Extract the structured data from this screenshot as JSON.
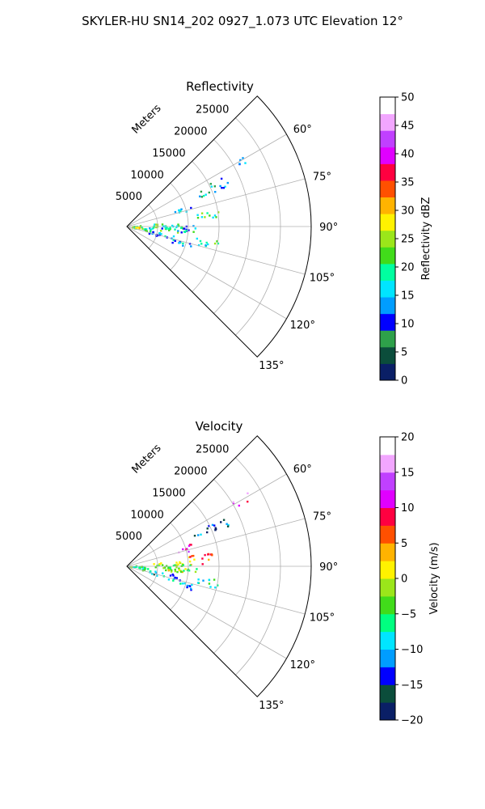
{
  "figure": {
    "title": "SKYLER-HU  SN14_202  0927_1.073 UTC Elevation 12°"
  },
  "chart_data": [
    {
      "type": "heatmap",
      "subtype": "polar-sector (radar PPI)",
      "title": "Reflectivity",
      "radial_axis_label": "Meters",
      "radial_ticks": [
        5000,
        10000,
        15000,
        20000,
        25000
      ],
      "radial_tick_labels": [
        "5000",
        "10000",
        "15000",
        "20000",
        "25000"
      ],
      "radial_range": [
        0,
        30000
      ],
      "azimuth_ticks": [
        60,
        75,
        90,
        105,
        120,
        135
      ],
      "azimuth_tick_labels": [
        "60°",
        "75°",
        "90°",
        "105°",
        "120°",
        "135°"
      ],
      "azimuth_range": [
        45,
        135
      ],
      "grid": true,
      "colorbar": {
        "label": "Reflectivity dBZ",
        "range": [
          0,
          50
        ],
        "ticks": [
          0,
          5,
          10,
          15,
          20,
          25,
          30,
          35,
          40,
          45,
          50
        ],
        "tick_labels": [
          "0",
          "5",
          "10",
          "15",
          "20",
          "25",
          "30",
          "35",
          "40",
          "45",
          "50"
        ],
        "stops": [
          "#0a1f66",
          "#0b4d3b",
          "#2ea04a",
          "#0000ff",
          "#009dff",
          "#00e5ff",
          "#00ffa0",
          "#41dc1a",
          "#9be61a",
          "#fff200",
          "#ffb300",
          "#ff5000",
          "#ff0040",
          "#e000ff",
          "#c040ff",
          "#f2a6ff",
          "#ffffff"
        ]
      },
      "echo_regions": [
        {
          "az": [
            83,
            98
          ],
          "range": [
            300,
            2800
          ],
          "value": 24
        },
        {
          "az": [
            92,
            102
          ],
          "range": [
            2000,
            3800
          ],
          "value": 20
        },
        {
          "az": [
            83,
            96
          ],
          "range": [
            4000,
            9000
          ],
          "value": 21
        },
        {
          "az": [
            78,
            84
          ],
          "range": [
            11000,
            15000
          ],
          "value": 20
        },
        {
          "az": [
            88,
            96
          ],
          "range": [
            5500,
            11500
          ],
          "value": 15
        },
        {
          "az": [
            99,
            107
          ],
          "range": [
            3600,
            8200
          ],
          "value": 14
        },
        {
          "az": [
            98,
            104
          ],
          "range": [
            11000,
            15000
          ],
          "value": 18
        },
        {
          "az": [
            104,
            110
          ],
          "range": [
            7000,
            11000
          ],
          "value": 13
        },
        {
          "az": [
            70,
            76
          ],
          "range": [
            8000,
            11000
          ],
          "value": 14
        },
        {
          "az": [
            62,
            68
          ],
          "range": [
            12000,
            18000
          ],
          "value": 12
        },
        {
          "az": [
            58,
            62
          ],
          "range": [
            20000,
            23000
          ],
          "value": 16
        }
      ]
    },
    {
      "type": "heatmap",
      "subtype": "polar-sector (radar PPI)",
      "title": "Velocity",
      "radial_axis_label": "Meters",
      "radial_ticks": [
        5000,
        10000,
        15000,
        20000,
        25000
      ],
      "radial_tick_labels": [
        "5000",
        "10000",
        "15000",
        "20000",
        "25000"
      ],
      "radial_range": [
        0,
        30000
      ],
      "azimuth_ticks": [
        60,
        75,
        90,
        105,
        120,
        135
      ],
      "azimuth_tick_labels": [
        "60°",
        "75°",
        "90°",
        "105°",
        "120°",
        "135°"
      ],
      "azimuth_range": [
        45,
        135
      ],
      "grid": true,
      "colorbar": {
        "label": "Velocity (m/s)",
        "range": [
          -20,
          20
        ],
        "ticks": [
          -20,
          -15,
          -10,
          -5,
          0,
          5,
          10,
          15,
          20
        ],
        "tick_labels": [
          "−20",
          "−15",
          "−10",
          "−5",
          "0",
          "5",
          "10",
          "15",
          "20"
        ],
        "stops": [
          "#0a1f66",
          "#0b4d3b",
          "#0000ff",
          "#009dff",
          "#00e5ff",
          "#00ff80",
          "#41dc1a",
          "#9be61a",
          "#fff200",
          "#ffb300",
          "#ff5000",
          "#ff0040",
          "#e000ff",
          "#c040ff",
          "#f2a6ff",
          "#ffffff"
        ]
      },
      "echo_regions": [
        {
          "az": [
            83,
            98
          ],
          "range": [
            300,
            2800
          ],
          "value": -4
        },
        {
          "az": [
            92,
            102
          ],
          "range": [
            2000,
            3800
          ],
          "value": -6
        },
        {
          "az": [
            83,
            96
          ],
          "range": [
            4000,
            9000
          ],
          "value": -2
        },
        {
          "az": [
            80,
            88
          ],
          "range": [
            9500,
            14000
          ],
          "value": 5
        },
        {
          "az": [
            88,
            96
          ],
          "range": [
            5500,
            11500
          ],
          "value": -3
        },
        {
          "az": [
            99,
            107
          ],
          "range": [
            3600,
            8200
          ],
          "value": -12
        },
        {
          "az": [
            98,
            104
          ],
          "range": [
            11000,
            15000
          ],
          "value": -8
        },
        {
          "az": [
            104,
            110
          ],
          "range": [
            7000,
            11000
          ],
          "value": -11
        },
        {
          "az": [
            70,
            76
          ],
          "range": [
            8000,
            11000
          ],
          "value": 11
        },
        {
          "az": [
            62,
            68
          ],
          "range": [
            12000,
            18000
          ],
          "value": -14
        },
        {
          "az": [
            58,
            62
          ],
          "range": [
            20000,
            23000
          ],
          "value": 14
        }
      ]
    }
  ]
}
